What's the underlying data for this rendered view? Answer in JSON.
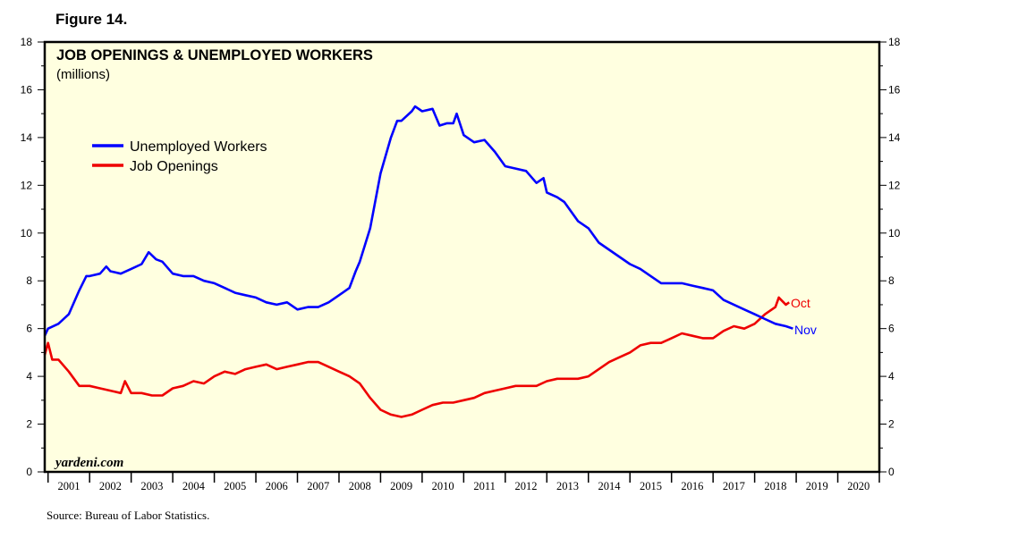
{
  "figure_label": "Figure 14.",
  "source": "Source: Bureau of Labor Statistics.",
  "watermark": "yardeni.com",
  "colors": {
    "background": "#ffffe0",
    "unemployed": "#0000ff",
    "openings": "#ee0000"
  },
  "chart_data": {
    "type": "line",
    "title": "JOB OPENINGS & UNEMPLOYED WORKERS",
    "subtitle": "(millions)",
    "ylim": [
      0,
      18
    ],
    "y_ticks": [
      0,
      2,
      4,
      6,
      8,
      10,
      12,
      14,
      16,
      18
    ],
    "y_tick_labels": [
      "0",
      "2",
      "4",
      "6",
      "8",
      "10",
      "12",
      "14",
      "16",
      "18"
    ],
    "xlim": [
      2000.92,
      2021.0
    ],
    "x_tick_labels": [
      "2001",
      "2002",
      "2003",
      "2004",
      "2005",
      "2006",
      "2007",
      "2008",
      "2009",
      "2010",
      "2011",
      "2012",
      "2013",
      "2014",
      "2015",
      "2016",
      "2017",
      "2018",
      "2019",
      "2020"
    ],
    "legend_position": "upper-left",
    "series": [
      {
        "name": "Unemployed Workers",
        "end_label": "Nov",
        "points": [
          [
            2000.92,
            5.7
          ],
          [
            2001.0,
            6.0
          ],
          [
            2001.25,
            6.2
          ],
          [
            2001.5,
            6.6
          ],
          [
            2001.75,
            7.6
          ],
          [
            2001.92,
            8.2
          ],
          [
            2002.0,
            8.2
          ],
          [
            2002.25,
            8.3
          ],
          [
            2002.4,
            8.6
          ],
          [
            2002.5,
            8.4
          ],
          [
            2002.75,
            8.3
          ],
          [
            2003.0,
            8.5
          ],
          [
            2003.25,
            8.7
          ],
          [
            2003.42,
            9.2
          ],
          [
            2003.6,
            8.9
          ],
          [
            2003.75,
            8.8
          ],
          [
            2004.0,
            8.3
          ],
          [
            2004.25,
            8.2
          ],
          [
            2004.5,
            8.2
          ],
          [
            2004.75,
            8.0
          ],
          [
            2005.0,
            7.9
          ],
          [
            2005.25,
            7.7
          ],
          [
            2005.5,
            7.5
          ],
          [
            2005.75,
            7.4
          ],
          [
            2006.0,
            7.3
          ],
          [
            2006.25,
            7.1
          ],
          [
            2006.5,
            7.0
          ],
          [
            2006.75,
            7.1
          ],
          [
            2007.0,
            6.8
          ],
          [
            2007.25,
            6.9
          ],
          [
            2007.5,
            6.9
          ],
          [
            2007.75,
            7.1
          ],
          [
            2008.0,
            7.4
          ],
          [
            2008.25,
            7.7
          ],
          [
            2008.4,
            8.4
          ],
          [
            2008.5,
            8.8
          ],
          [
            2008.75,
            10.2
          ],
          [
            2009.0,
            12.5
          ],
          [
            2009.25,
            14.0
          ],
          [
            2009.4,
            14.7
          ],
          [
            2009.5,
            14.7
          ],
          [
            2009.75,
            15.1
          ],
          [
            2009.83,
            15.3
          ],
          [
            2010.0,
            15.1
          ],
          [
            2010.25,
            15.2
          ],
          [
            2010.42,
            14.5
          ],
          [
            2010.6,
            14.6
          ],
          [
            2010.75,
            14.6
          ],
          [
            2010.83,
            15.0
          ],
          [
            2011.0,
            14.1
          ],
          [
            2011.25,
            13.8
          ],
          [
            2011.5,
            13.9
          ],
          [
            2011.75,
            13.4
          ],
          [
            2012.0,
            12.8
          ],
          [
            2012.25,
            12.7
          ],
          [
            2012.5,
            12.6
          ],
          [
            2012.75,
            12.1
          ],
          [
            2012.92,
            12.3
          ],
          [
            2013.0,
            11.7
          ],
          [
            2013.25,
            11.5
          ],
          [
            2013.42,
            11.3
          ],
          [
            2013.75,
            10.5
          ],
          [
            2014.0,
            10.2
          ],
          [
            2014.25,
            9.6
          ],
          [
            2014.5,
            9.3
          ],
          [
            2014.75,
            9.0
          ],
          [
            2015.0,
            8.7
          ],
          [
            2015.25,
            8.5
          ],
          [
            2015.5,
            8.2
          ],
          [
            2015.75,
            7.9
          ],
          [
            2016.0,
            7.9
          ],
          [
            2016.25,
            7.9
          ],
          [
            2016.5,
            7.8
          ],
          [
            2016.75,
            7.7
          ],
          [
            2017.0,
            7.6
          ],
          [
            2017.25,
            7.2
          ],
          [
            2017.5,
            7.0
          ],
          [
            2017.75,
            6.8
          ],
          [
            2018.0,
            6.6
          ],
          [
            2018.25,
            6.4
          ],
          [
            2018.5,
            6.2
          ],
          [
            2018.75,
            6.1
          ],
          [
            2018.92,
            6.0
          ]
        ]
      },
      {
        "name": "Job Openings",
        "end_label": "Oct",
        "points": [
          [
            2000.92,
            4.9
          ],
          [
            2001.0,
            5.4
          ],
          [
            2001.1,
            4.7
          ],
          [
            2001.25,
            4.7
          ],
          [
            2001.5,
            4.2
          ],
          [
            2001.75,
            3.6
          ],
          [
            2002.0,
            3.6
          ],
          [
            2002.25,
            3.5
          ],
          [
            2002.5,
            3.4
          ],
          [
            2002.75,
            3.3
          ],
          [
            2002.85,
            3.8
          ],
          [
            2003.0,
            3.3
          ],
          [
            2003.25,
            3.3
          ],
          [
            2003.5,
            3.2
          ],
          [
            2003.75,
            3.2
          ],
          [
            2004.0,
            3.5
          ],
          [
            2004.25,
            3.6
          ],
          [
            2004.5,
            3.8
          ],
          [
            2004.75,
            3.7
          ],
          [
            2005.0,
            4.0
          ],
          [
            2005.25,
            4.2
          ],
          [
            2005.5,
            4.1
          ],
          [
            2005.75,
            4.3
          ],
          [
            2006.0,
            4.4
          ],
          [
            2006.25,
            4.5
          ],
          [
            2006.5,
            4.3
          ],
          [
            2006.75,
            4.4
          ],
          [
            2007.0,
            4.5
          ],
          [
            2007.25,
            4.6
          ],
          [
            2007.5,
            4.6
          ],
          [
            2007.75,
            4.4
          ],
          [
            2008.0,
            4.2
          ],
          [
            2008.25,
            4.0
          ],
          [
            2008.5,
            3.7
          ],
          [
            2008.75,
            3.1
          ],
          [
            2009.0,
            2.6
          ],
          [
            2009.25,
            2.4
          ],
          [
            2009.5,
            2.3
          ],
          [
            2009.75,
            2.4
          ],
          [
            2010.0,
            2.6
          ],
          [
            2010.25,
            2.8
          ],
          [
            2010.5,
            2.9
          ],
          [
            2010.75,
            2.9
          ],
          [
            2011.0,
            3.0
          ],
          [
            2011.25,
            3.1
          ],
          [
            2011.5,
            3.3
          ],
          [
            2011.75,
            3.4
          ],
          [
            2012.0,
            3.5
          ],
          [
            2012.25,
            3.6
          ],
          [
            2012.5,
            3.6
          ],
          [
            2012.75,
            3.6
          ],
          [
            2013.0,
            3.8
          ],
          [
            2013.25,
            3.9
          ],
          [
            2013.5,
            3.9
          ],
          [
            2013.75,
            3.9
          ],
          [
            2014.0,
            4.0
          ],
          [
            2014.25,
            4.3
          ],
          [
            2014.5,
            4.6
          ],
          [
            2014.75,
            4.8
          ],
          [
            2015.0,
            5.0
          ],
          [
            2015.25,
            5.3
          ],
          [
            2015.5,
            5.4
          ],
          [
            2015.75,
            5.4
          ],
          [
            2016.0,
            5.6
          ],
          [
            2016.25,
            5.8
          ],
          [
            2016.5,
            5.7
          ],
          [
            2016.75,
            5.6
          ],
          [
            2017.0,
            5.6
          ],
          [
            2017.25,
            5.9
          ],
          [
            2017.5,
            6.1
          ],
          [
            2017.75,
            6.0
          ],
          [
            2018.0,
            6.2
          ],
          [
            2018.25,
            6.6
          ],
          [
            2018.5,
            6.9
          ],
          [
            2018.58,
            7.3
          ],
          [
            2018.75,
            7.0
          ],
          [
            2018.83,
            7.1
          ]
        ]
      }
    ]
  }
}
